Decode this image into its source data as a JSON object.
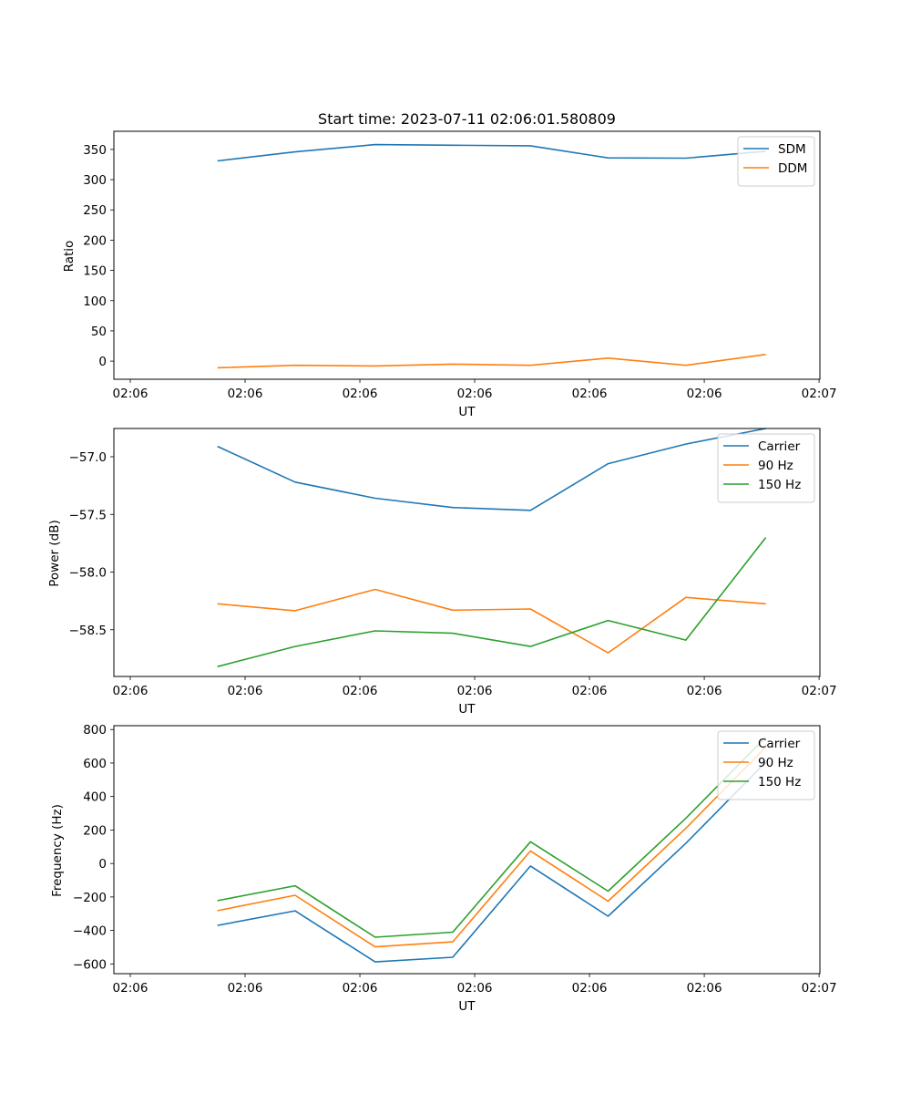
{
  "chart_data": [
    {
      "type": "line",
      "title": "Start time: 2023-07-11 02:06:01.580809",
      "xlabel": "UT",
      "ylabel": "Ratio",
      "x_tick_labels": [
        "02:06",
        "02:06",
        "02:06",
        "02:06",
        "02:06",
        "02:06",
        "02:07"
      ],
      "x": [
        0.44,
        0.77,
        1.11,
        1.44,
        1.77,
        2.1,
        2.43,
        2.77
      ],
      "xlim": [
        0,
        3
      ],
      "ylim": [
        -30,
        380
      ],
      "yticks": [
        0,
        50,
        100,
        150,
        200,
        250,
        300,
        350
      ],
      "grid": false,
      "legend_position": "upper-right",
      "series": [
        {
          "name": "SDM",
          "color": "#1f77b4",
          "values": [
            331,
            346,
            358,
            357,
            356,
            336,
            335.5,
            347
          ]
        },
        {
          "name": "DDM",
          "color": "#ff7f0e",
          "values": [
            -11,
            -7,
            -8,
            -5,
            -7,
            5,
            -7,
            11
          ]
        }
      ]
    },
    {
      "type": "line",
      "title": "",
      "xlabel": "UT",
      "ylabel": "Power (dB)",
      "x_tick_labels": [
        "02:06",
        "02:06",
        "02:06",
        "02:06",
        "02:06",
        "02:06",
        "02:07"
      ],
      "x": [
        0.44,
        0.77,
        1.11,
        1.44,
        1.77,
        2.1,
        2.43,
        2.77
      ],
      "xlim": [
        0,
        3
      ],
      "ylim": [
        -58.905,
        -56.755
      ],
      "yticks": [
        -57.0,
        -57.5,
        -58.0,
        -58.5
      ],
      "ytick_labels": [
        "−57.0",
        "−57.5",
        "−58.0",
        "−58.5"
      ],
      "grid": false,
      "legend_position": "upper-right",
      "series": [
        {
          "name": "Carrier",
          "color": "#1f77b4",
          "values": [
            -56.91,
            -57.22,
            -57.36,
            -57.44,
            -57.465,
            -57.06,
            -56.89,
            -56.755
          ]
        },
        {
          "name": "90 Hz",
          "color": "#ff7f0e",
          "values": [
            -58.275,
            -58.335,
            -58.15,
            -58.33,
            -58.32,
            -58.7,
            -58.22,
            -58.275
          ]
        },
        {
          "name": "150 Hz",
          "color": "#2ca02c",
          "values": [
            -58.82,
            -58.645,
            -58.51,
            -58.53,
            -58.645,
            -58.42,
            -58.59,
            -57.7
          ]
        }
      ]
    },
    {
      "type": "line",
      "title": "",
      "xlabel": "UT",
      "ylabel": "Frequency (Hz)",
      "x_tick_labels": [
        "02:06",
        "02:06",
        "02:06",
        "02:06",
        "02:06",
        "02:06",
        "02:07"
      ],
      "x": [
        0.44,
        0.77,
        1.11,
        1.44,
        1.77,
        2.1,
        2.43,
        2.77
      ],
      "xlim": [
        0,
        3
      ],
      "ylim": [
        -658,
        823
      ],
      "yticks": [
        -600,
        -400,
        -200,
        0,
        200,
        400,
        600,
        800
      ],
      "ytick_labels": [
        "−600",
        "−400",
        "−200",
        "0",
        "200",
        "400",
        "600",
        "800"
      ],
      "grid": false,
      "legend_position": "upper-right",
      "series": [
        {
          "name": "Carrier",
          "color": "#1f77b4",
          "values": [
            -370,
            -283,
            -588,
            -560,
            -15,
            -315,
            120,
            605
          ]
        },
        {
          "name": "90 Hz",
          "color": "#ff7f0e",
          "values": [
            -282,
            -190,
            -498,
            -468,
            75,
            -225,
            210,
            695
          ]
        },
        {
          "name": "150 Hz",
          "color": "#2ca02c",
          "values": [
            -222,
            -133,
            -440,
            -410,
            130,
            -165,
            270,
            755
          ]
        }
      ]
    }
  ]
}
